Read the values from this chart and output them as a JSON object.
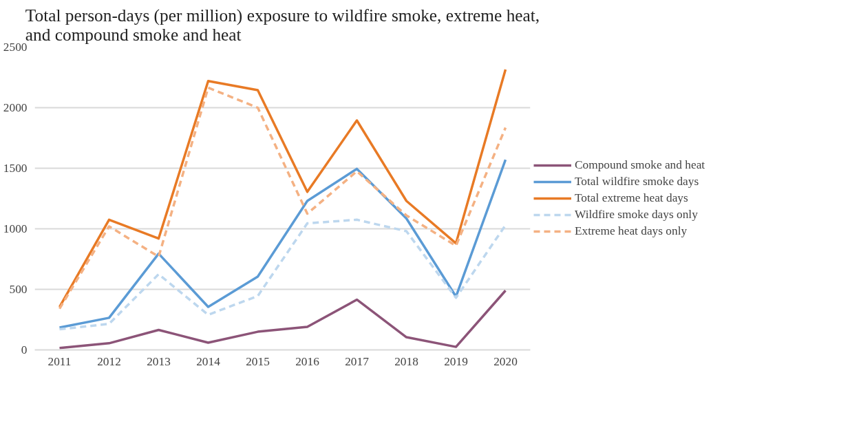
{
  "chart_data": {
    "type": "line",
    "title": "Total person-days (per million) exposure to wildfire smoke, extreme heat,\nand compound smoke and heat",
    "categories": [
      "2011",
      "2012",
      "2013",
      "2014",
      "2015",
      "2016",
      "2017",
      "2018",
      "2019",
      "2020"
    ],
    "series": [
      {
        "name": "Compound smoke and heat",
        "color": "#8c5478",
        "line_style": "solid",
        "values": [
          15,
          55,
          165,
          60,
          150,
          190,
          415,
          105,
          25,
          490
        ]
      },
      {
        "name": "Total wildfire smoke days",
        "color": "#5b9bd5",
        "line_style": "solid",
        "values": [
          185,
          265,
          795,
          355,
          605,
          1230,
          1495,
          1085,
          440,
          1570
        ]
      },
      {
        "name": "Total extreme heat days",
        "color": "#e87a25",
        "line_style": "solid",
        "values": [
          355,
          1075,
          920,
          2220,
          2145,
          1305,
          1895,
          1230,
          880,
          2315
        ]
      },
      {
        "name": "Wildfire smoke days only",
        "color": "#bdd7ee",
        "line_style": "dashed",
        "values": [
          170,
          215,
          625,
          290,
          445,
          1045,
          1075,
          980,
          430,
          1030
        ]
      },
      {
        "name": "Extreme heat days only",
        "color": "#f4b183",
        "line_style": "dashed",
        "values": [
          340,
          1020,
          770,
          2165,
          2000,
          1125,
          1475,
          1110,
          860,
          1835
        ]
      }
    ],
    "ylim": [
      0,
      2500
    ],
    "yticks": [
      0,
      500,
      1000,
      1500,
      2000,
      2500
    ],
    "grid": "y",
    "legend": "right",
    "marker": "none"
  }
}
